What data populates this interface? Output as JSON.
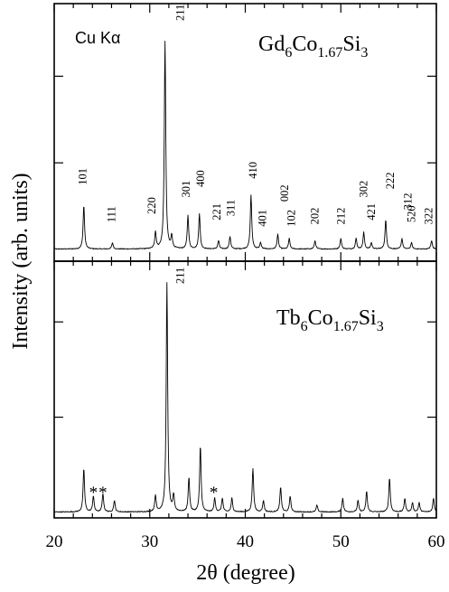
{
  "chart_data": [
    {
      "panel": "top",
      "type": "line",
      "compound": {
        "pre": "Gd",
        "s1": "6",
        "mid": "Co",
        "s2": "1.67",
        "mid2": "Si",
        "s3": "3"
      },
      "radiation_label": "Cu Kα",
      "xlim": [
        20,
        60
      ],
      "ylim": [
        0,
        1.0
      ],
      "peaks": [
        {
          "hkl": "101",
          "x": 23.1,
          "y": 0.21,
          "lx": 23.0,
          "ly": 0.31
        },
        {
          "hkl": "111",
          "x": 26.1,
          "y": 0.03,
          "lx": 26.0,
          "ly": 0.13
        },
        {
          "hkl": "220",
          "x": 30.6,
          "y": 0.08,
          "lx": 30.2,
          "ly": 0.17
        },
        {
          "hkl": "211",
          "x": 31.6,
          "y": 1.0,
          "lx": 33.2,
          "ly": 1.1
        },
        {
          "hkl": "",
          "x": 32.3,
          "y": 0.06,
          "lx": 0,
          "ly": 0
        },
        {
          "hkl": "301",
          "x": 34.0,
          "y": 0.16,
          "lx": 33.8,
          "ly": 0.25
        },
        {
          "hkl": "400",
          "x": 35.2,
          "y": 0.17,
          "lx": 35.3,
          "ly": 0.3
        },
        {
          "hkl": "221",
          "x": 37.2,
          "y": 0.04,
          "lx": 37.0,
          "ly": 0.14
        },
        {
          "hkl": "311",
          "x": 38.4,
          "y": 0.06,
          "lx": 38.5,
          "ly": 0.16
        },
        {
          "hkl": "410",
          "x": 40.6,
          "y": 0.26,
          "lx": 40.8,
          "ly": 0.34
        },
        {
          "hkl": "401",
          "x": 41.6,
          "y": 0.03,
          "lx": 41.8,
          "ly": 0.11
        },
        {
          "hkl": "002",
          "x": 43.4,
          "y": 0.07,
          "lx": 44.1,
          "ly": 0.23
        },
        {
          "hkl": "102",
          "x": 44.6,
          "y": 0.05,
          "lx": 44.8,
          "ly": 0.11
        },
        {
          "hkl": "202",
          "x": 47.3,
          "y": 0.04,
          "lx": 47.3,
          "ly": 0.12
        },
        {
          "hkl": "212",
          "x": 50.0,
          "y": 0.05,
          "lx": 50.0,
          "ly": 0.12
        },
        {
          "hkl": "",
          "x": 51.6,
          "y": 0.05,
          "lx": 0,
          "ly": 0
        },
        {
          "hkl": "302",
          "x": 52.4,
          "y": 0.08,
          "lx": 52.4,
          "ly": 0.25
        },
        {
          "hkl": "421",
          "x": 53.2,
          "y": 0.03,
          "lx": 53.2,
          "ly": 0.14
        },
        {
          "hkl": "222",
          "x": 54.7,
          "y": 0.14,
          "lx": 55.2,
          "ly": 0.29
        },
        {
          "hkl": "312",
          "x": 56.4,
          "y": 0.05,
          "lx": 57.0,
          "ly": 0.19
        },
        {
          "hkl": "520",
          "x": 57.4,
          "y": 0.03,
          "lx": 57.4,
          "ly": 0.13
        },
        {
          "hkl": "322",
          "x": 59.5,
          "y": 0.04,
          "lx": 59.2,
          "ly": 0.12
        }
      ]
    },
    {
      "panel": "bottom",
      "type": "line",
      "compound": {
        "pre": "Tb",
        "s1": "6",
        "mid": "Co",
        "s2": "1.67",
        "mid2": "Si",
        "s3": "3"
      },
      "xlim": [
        20,
        60
      ],
      "ylim": [
        0,
        1.0
      ],
      "peaks": [
        {
          "hkl": "",
          "x": 23.1,
          "y": 0.19
        },
        {
          "hkl": "",
          "x": 24.1,
          "y": 0.07
        },
        {
          "hkl": "",
          "x": 25.1,
          "y": 0.08
        },
        {
          "hkl": "",
          "x": 26.3,
          "y": 0.05
        },
        {
          "hkl": "",
          "x": 30.6,
          "y": 0.07
        },
        {
          "hkl": "211",
          "x": 31.8,
          "y": 1.0
        },
        {
          "hkl": "",
          "x": 32.5,
          "y": 0.07
        },
        {
          "hkl": "",
          "x": 34.1,
          "y": 0.15
        },
        {
          "hkl": "",
          "x": 35.3,
          "y": 0.29
        },
        {
          "hkl": "",
          "x": 36.8,
          "y": 0.06
        },
        {
          "hkl": "",
          "x": 37.6,
          "y": 0.06
        },
        {
          "hkl": "",
          "x": 38.6,
          "y": 0.06
        },
        {
          "hkl": "",
          "x": 40.8,
          "y": 0.19
        },
        {
          "hkl": "",
          "x": 41.9,
          "y": 0.05
        },
        {
          "hkl": "",
          "x": 43.7,
          "y": 0.11
        },
        {
          "hkl": "",
          "x": 44.7,
          "y": 0.07
        },
        {
          "hkl": "",
          "x": 47.5,
          "y": 0.03
        },
        {
          "hkl": "",
          "x": 50.2,
          "y": 0.06
        },
        {
          "hkl": "",
          "x": 51.8,
          "y": 0.05
        },
        {
          "hkl": "",
          "x": 52.7,
          "y": 0.09
        },
        {
          "hkl": "",
          "x": 55.1,
          "y": 0.15
        },
        {
          "hkl": "",
          "x": 56.7,
          "y": 0.06
        },
        {
          "hkl": "",
          "x": 57.5,
          "y": 0.04
        },
        {
          "hkl": "",
          "x": 58.2,
          "y": 0.04
        },
        {
          "hkl": "",
          "x": 59.7,
          "y": 0.06
        }
      ],
      "peak_labels": [
        {
          "hkl": "211",
          "x": 33.2,
          "y": 1.0
        }
      ],
      "impurity_markers": [
        {
          "label": "*",
          "x": 24.1,
          "y": 0.11
        },
        {
          "label": "*",
          "x": 25.1,
          "y": 0.11
        },
        {
          "label": "*",
          "x": 36.7,
          "y": 0.11
        }
      ]
    }
  ],
  "axes": {
    "xlabel": "2θ (degree)",
    "ylabel": "Intensity (arb. units)",
    "xticks": [
      20,
      30,
      40,
      50,
      60
    ],
    "xtick_labels": [
      "20",
      "30",
      "40",
      "50",
      "60"
    ],
    "minor_xtick_step": 2
  }
}
